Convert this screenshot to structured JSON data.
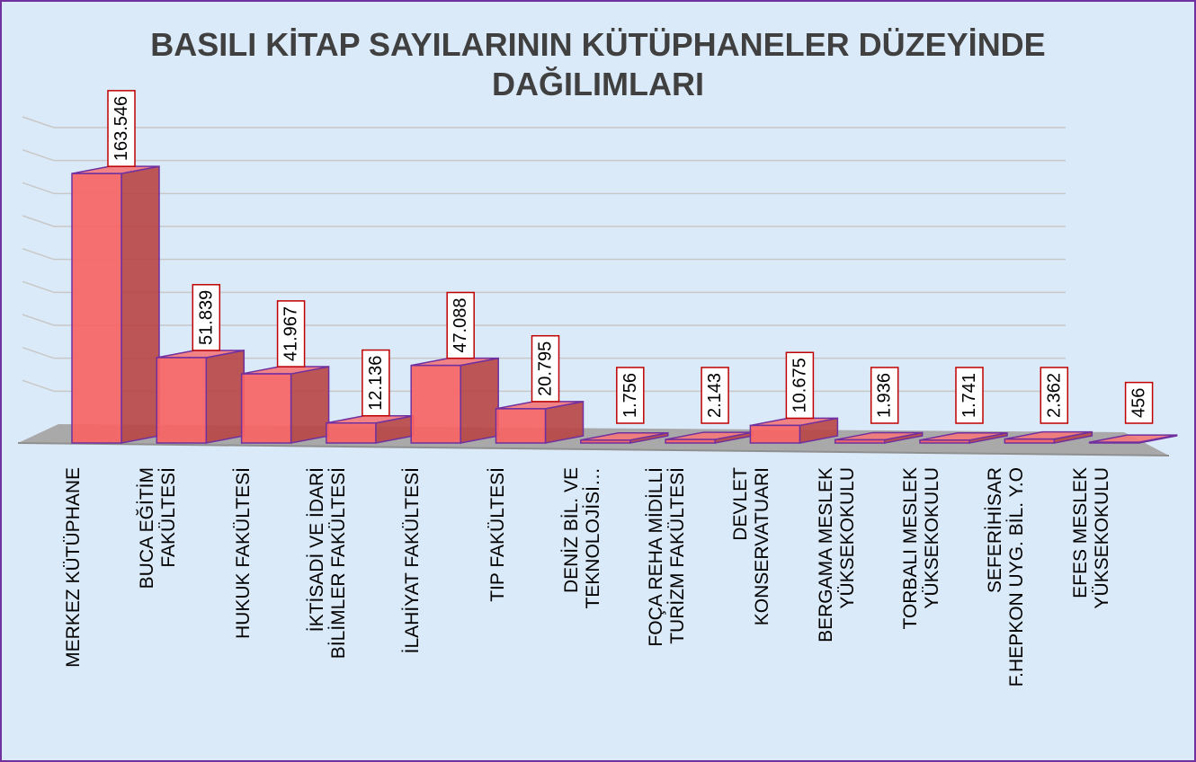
{
  "chart_data": {
    "type": "bar3d",
    "title": "BASILI KİTAP SAYILARININ KÜTÜPHANELER DÜZEYİNDE DAĞILIMLARI",
    "categories": [
      "MERKEZ KÜTÜPHANE",
      "BUCA EĞİTİM\nFAKÜLTESİ",
      "HUKUK FAKÜLTESİ",
      "İKTİSADİ VE İDARİ\nBİLİMLER FAKÜLTESİ",
      "İLAHİYAT FAKÜLTESİ",
      "TIP FAKÜLTESİ",
      "DENİZ BİL. VE\nTEKNOLOJİSİ…",
      "FOÇA REHA MİDİLLİ\nTURİZM FAKÜLTESİ",
      "DEVLET\nKONSERVATUARI",
      "BERGAMA MESLEK\nYÜKSEKOKULU",
      "TORBALI MESLEK\nYÜKSEKOKULU",
      "SEFERİHİSAR\nF.HEPKON UYG. BİL. Y.O",
      "EFES MESLEK\nYÜKSEKOKULU"
    ],
    "values": [
      163546,
      51839,
      41967,
      12136,
      47088,
      20795,
      1756,
      2143,
      10675,
      1936,
      1741,
      2362,
      456
    ],
    "value_labels": [
      "163.546",
      "51.839",
      "41.967",
      "12.136",
      "47.088",
      "20.795",
      "1.756",
      "2.143",
      "10.675",
      "1.936",
      "1.741",
      "2.362",
      "456"
    ],
    "color": "#f86464",
    "ylim": [
      0,
      180000
    ],
    "yticks": [
      20000,
      40000,
      60000,
      80000,
      100000,
      120000,
      140000,
      160000,
      180000
    ],
    "grid": true
  }
}
